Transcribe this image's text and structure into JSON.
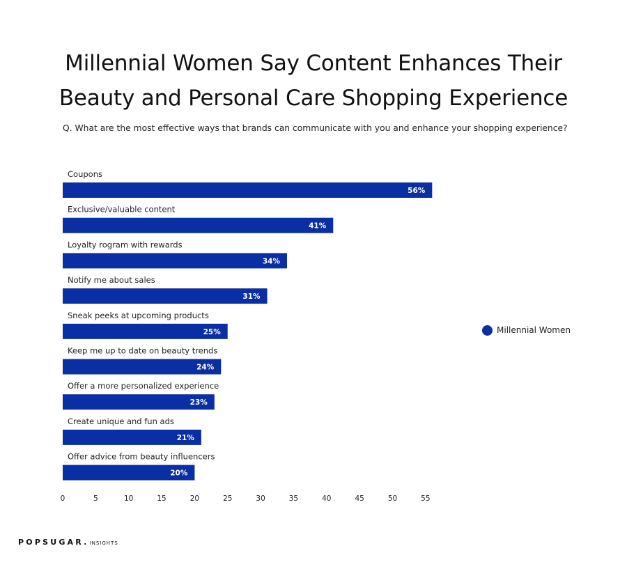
{
  "brand": {
    "name": "POPSUGAR.",
    "suffix": "INSIGHTS"
  },
  "chart_data": {
    "type": "bar",
    "orientation": "horizontal",
    "title_lines": [
      "Millennial Women Say Content Enhances Their",
      "Beauty and Personal Care Shopping Experience"
    ],
    "subtitle": "Q. What are the most effective ways that brands can communicate with you and enhance your shopping experience?",
    "categories": [
      "Coupons",
      "Exclusive/valuable content",
      "Loyalty rogram with rewards",
      "Notify me about sales",
      "Sneak peeks at upcoming products",
      "Keep me up to date on beauty trends",
      "Offer a more personalized experience",
      "Create unique and fun ads",
      "Offer advice from beauty influencers"
    ],
    "series": [
      {
        "name": "Millennial Women",
        "color": "#0a2ea3",
        "values": [
          56,
          41,
          34,
          31,
          25,
          24,
          23,
          21,
          20
        ],
        "labels": [
          "56%",
          "41%",
          "34%",
          "31%",
          "25%",
          "24%",
          "23%",
          "21%",
          "20%"
        ]
      }
    ],
    "xticks": [
      "0",
      "5",
      "10",
      "15",
      "20",
      "25",
      "30",
      "35",
      "40",
      "45",
      "50",
      "55"
    ],
    "xlim": [
      0,
      55
    ],
    "grid": false,
    "legend": "right"
  }
}
